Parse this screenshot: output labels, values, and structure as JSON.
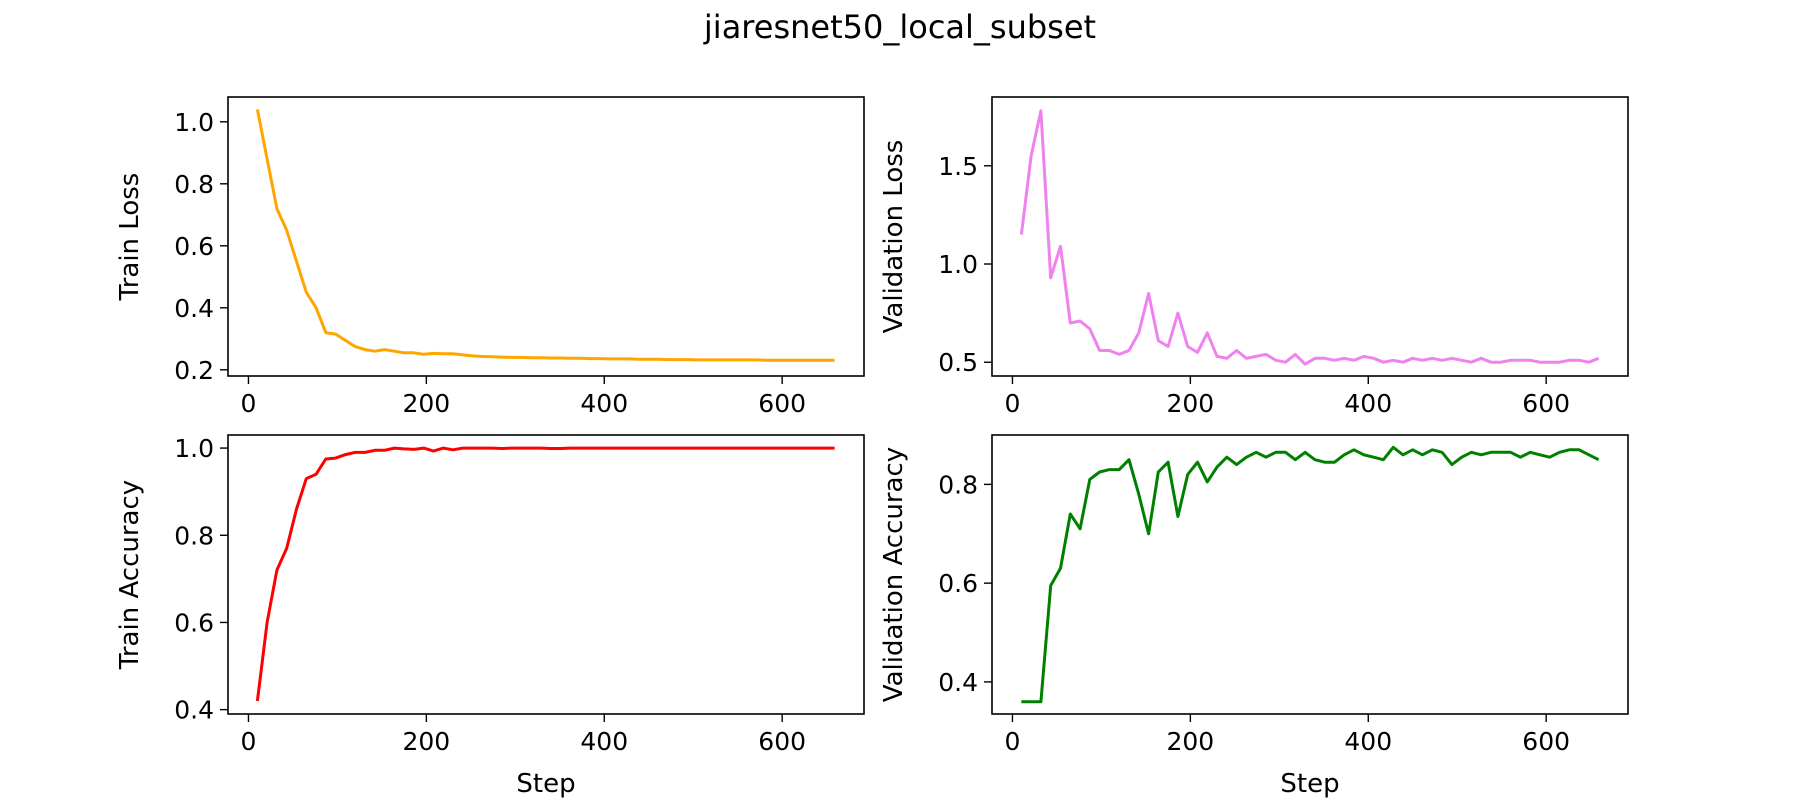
{
  "figure": {
    "title": "jiaresnet50_local_subset"
  },
  "chart_data": [
    {
      "id": "train-loss",
      "type": "line",
      "title": "",
      "xlabel": "",
      "ylabel": "Train Loss",
      "color": "#ffa500",
      "xlim": [
        -23,
        692
      ],
      "ylim": [
        0.18,
        1.08
      ],
      "xticks": [
        0,
        200,
        400,
        600
      ],
      "yticks": [
        0.2,
        0.4,
        0.6,
        0.8,
        1.0
      ],
      "ytick_format": 1,
      "grid": false,
      "x": [
        10,
        21,
        32,
        43,
        54,
        65,
        76,
        87,
        98,
        109,
        120,
        131,
        142,
        153,
        164,
        175,
        186,
        197,
        208,
        219,
        230,
        241,
        252,
        263,
        274,
        285,
        296,
        307,
        318,
        329,
        340,
        351,
        362,
        373,
        384,
        395,
        406,
        417,
        428,
        439,
        450,
        461,
        472,
        483,
        494,
        505,
        516,
        527,
        538,
        549,
        560,
        571,
        582,
        593,
        604,
        615,
        626,
        637,
        648,
        659
      ],
      "y": [
        1.04,
        0.88,
        0.72,
        0.65,
        0.55,
        0.45,
        0.4,
        0.32,
        0.315,
        0.295,
        0.275,
        0.265,
        0.26,
        0.265,
        0.26,
        0.255,
        0.255,
        0.25,
        0.253,
        0.252,
        0.252,
        0.248,
        0.245,
        0.243,
        0.242,
        0.241,
        0.24,
        0.24,
        0.239,
        0.239,
        0.238,
        0.238,
        0.237,
        0.237,
        0.236,
        0.236,
        0.235,
        0.235,
        0.235,
        0.234,
        0.234,
        0.234,
        0.233,
        0.233,
        0.233,
        0.232,
        0.232,
        0.232,
        0.232,
        0.232,
        0.232,
        0.232,
        0.231,
        0.231,
        0.231,
        0.231,
        0.231,
        0.231,
        0.231,
        0.231
      ]
    },
    {
      "id": "validation-loss",
      "type": "line",
      "title": "",
      "xlabel": "",
      "ylabel": "Validation Loss",
      "color": "#ee82ee",
      "xlim": [
        -23,
        692
      ],
      "ylim": [
        0.43,
        1.85
      ],
      "xticks": [
        0,
        200,
        400,
        600
      ],
      "yticks": [
        0.5,
        1.0,
        1.5
      ],
      "ytick_format": 1,
      "grid": false,
      "x": [
        10,
        21,
        32,
        43,
        54,
        65,
        76,
        87,
        98,
        109,
        120,
        131,
        142,
        153,
        164,
        175,
        186,
        197,
        208,
        219,
        230,
        241,
        252,
        263,
        274,
        285,
        296,
        307,
        318,
        329,
        340,
        351,
        362,
        373,
        384,
        395,
        406,
        417,
        428,
        439,
        450,
        461,
        472,
        483,
        494,
        505,
        516,
        527,
        538,
        549,
        560,
        571,
        582,
        593,
        604,
        615,
        626,
        637,
        648,
        659
      ],
      "y": [
        1.15,
        1.55,
        1.78,
        0.93,
        1.09,
        0.7,
        0.71,
        0.67,
        0.56,
        0.56,
        0.54,
        0.56,
        0.65,
        0.85,
        0.61,
        0.58,
        0.75,
        0.58,
        0.55,
        0.65,
        0.53,
        0.52,
        0.56,
        0.52,
        0.53,
        0.54,
        0.51,
        0.5,
        0.54,
        0.49,
        0.52,
        0.52,
        0.51,
        0.52,
        0.51,
        0.53,
        0.52,
        0.5,
        0.51,
        0.5,
        0.52,
        0.51,
        0.52,
        0.51,
        0.52,
        0.51,
        0.5,
        0.52,
        0.5,
        0.5,
        0.51,
        0.51,
        0.51,
        0.5,
        0.5,
        0.5,
        0.51,
        0.51,
        0.5,
        0.52
      ]
    },
    {
      "id": "train-accuracy",
      "type": "line",
      "title": "",
      "xlabel": "Step",
      "ylabel": "Train Accuracy",
      "color": "#ff0000",
      "xlim": [
        -23,
        692
      ],
      "ylim": [
        0.39,
        1.03
      ],
      "xticks": [
        0,
        200,
        400,
        600
      ],
      "yticks": [
        0.4,
        0.6,
        0.8,
        1.0
      ],
      "ytick_format": 1,
      "grid": false,
      "x": [
        10,
        21,
        32,
        43,
        54,
        65,
        76,
        87,
        98,
        109,
        120,
        131,
        142,
        153,
        164,
        175,
        186,
        197,
        208,
        219,
        230,
        241,
        252,
        263,
        274,
        285,
        296,
        307,
        318,
        329,
        340,
        351,
        362,
        373,
        384,
        395,
        406,
        417,
        428,
        439,
        450,
        461,
        472,
        483,
        494,
        505,
        516,
        527,
        538,
        549,
        560,
        571,
        582,
        593,
        604,
        615,
        626,
        637,
        648,
        659
      ],
      "y": [
        0.42,
        0.6,
        0.72,
        0.77,
        0.86,
        0.93,
        0.94,
        0.975,
        0.977,
        0.985,
        0.99,
        0.99,
        0.995,
        0.995,
        1.0,
        0.998,
        0.997,
        1.0,
        0.993,
        1.0,
        0.996,
        1.0,
        1.0,
        1.0,
        1.0,
        0.999,
        1.0,
        1.0,
        1.0,
        1.0,
        0.999,
        0.999,
        1.0,
        1.0,
        1.0,
        1.0,
        1.0,
        1.0,
        1.0,
        1.0,
        1.0,
        1.0,
        1.0,
        1.0,
        1.0,
        1.0,
        1.0,
        1.0,
        1.0,
        1.0,
        1.0,
        1.0,
        1.0,
        1.0,
        1.0,
        1.0,
        1.0,
        1.0,
        1.0,
        1.0
      ]
    },
    {
      "id": "validation-accuracy",
      "type": "line",
      "title": "",
      "xlabel": "Step",
      "ylabel": "Validation Accuracy",
      "color": "#008000",
      "xlim": [
        -23,
        692
      ],
      "ylim": [
        0.335,
        0.9
      ],
      "xticks": [
        0,
        200,
        400,
        600
      ],
      "yticks": [
        0.4,
        0.6,
        0.8
      ],
      "ytick_format": 1,
      "grid": false,
      "x": [
        10,
        21,
        32,
        43,
        54,
        65,
        76,
        87,
        98,
        109,
        120,
        131,
        142,
        153,
        164,
        175,
        186,
        197,
        208,
        219,
        230,
        241,
        252,
        263,
        274,
        285,
        296,
        307,
        318,
        329,
        340,
        351,
        362,
        373,
        384,
        395,
        406,
        417,
        428,
        439,
        450,
        461,
        472,
        483,
        494,
        505,
        516,
        527,
        538,
        549,
        560,
        571,
        582,
        593,
        604,
        615,
        626,
        637,
        648,
        659
      ],
      "y": [
        0.36,
        0.36,
        0.36,
        0.595,
        0.63,
        0.74,
        0.71,
        0.81,
        0.825,
        0.83,
        0.83,
        0.85,
        0.78,
        0.7,
        0.825,
        0.845,
        0.735,
        0.82,
        0.845,
        0.805,
        0.835,
        0.855,
        0.84,
        0.855,
        0.865,
        0.855,
        0.865,
        0.865,
        0.85,
        0.865,
        0.85,
        0.845,
        0.845,
        0.86,
        0.87,
        0.86,
        0.855,
        0.85,
        0.875,
        0.86,
        0.87,
        0.86,
        0.87,
        0.865,
        0.84,
        0.855,
        0.865,
        0.86,
        0.865,
        0.865,
        0.865,
        0.855,
        0.865,
        0.86,
        0.855,
        0.865,
        0.87,
        0.87,
        0.86,
        0.85
      ]
    }
  ]
}
